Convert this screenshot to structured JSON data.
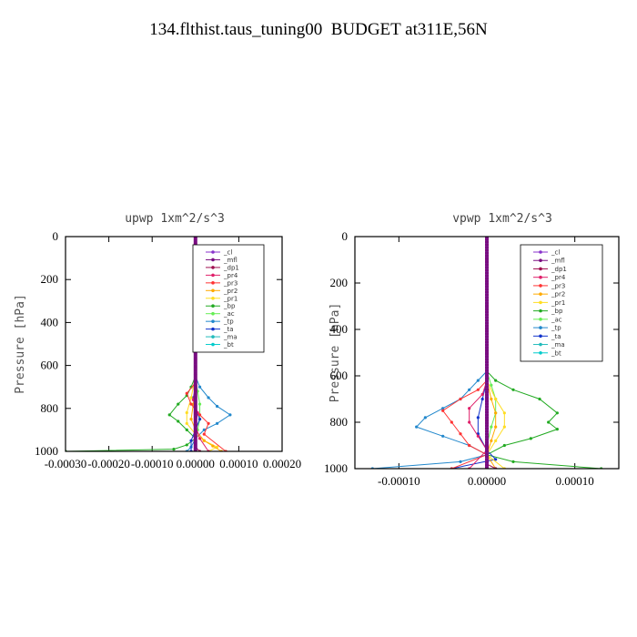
{
  "title": "134.flthist.taus_tuning00  BUDGET at311E,56N",
  "legend_entries": [
    "_cl",
    "_mfl",
    "_dp1",
    "_pr4",
    "_pr3",
    "_pr2",
    "_pr1",
    "_bp",
    "_ac",
    "_tp",
    "_ta",
    "_ma",
    "_bt"
  ],
  "colors": {
    "_cl": "#8833cc",
    "_mfl": "#7a0c80",
    "_dp1": "#a01050",
    "_pr4": "#e0206a",
    "_pr3": "#ff3333",
    "_pr2": "#ffaa00",
    "_pr1": "#ffdd22",
    "_bp": "#22aa22",
    "_ac": "#66ee55",
    "_tp": "#2288cc",
    "_ta": "#1133cc",
    "_ma": "#22bbbb",
    "_bt": "#00cccc"
  },
  "chart_data": [
    {
      "type": "line",
      "title": "upwp   1xm^2/s^3",
      "ylabel": "Pressure [hPa]",
      "xlabel": "",
      "xlim": [
        -0.0003,
        0.0002
      ],
      "ylim": [
        1000,
        0
      ],
      "xticks": [
        -0.0003,
        -0.0002,
        -0.0001,
        0.0,
        0.0001,
        0.0002
      ],
      "xtick_labels": [
        "-0.00030",
        "-0.00020",
        "-0.00010",
        "0.00000",
        "0.00010",
        "0.00020"
      ],
      "yticks": [
        0,
        200,
        400,
        600,
        800,
        1000
      ],
      "ytick_labels": [
        "0",
        "200",
        "400",
        "600",
        "800",
        "1000"
      ],
      "legend": "top-right",
      "series": [
        {
          "name": "_bp",
          "x": [
            0,
            0,
            -1e-05,
            -2e-05,
            -4e-05,
            -6e-05,
            -4e-05,
            -2e-05,
            0,
            -2e-05,
            -5e-05,
            -0.0003
          ],
          "y": [
            0,
            650,
            700,
            740,
            780,
            830,
            860,
            900,
            940,
            970,
            990,
            1000
          ]
        },
        {
          "name": "_ac",
          "x": [
            0,
            0,
            5e-06,
            1e-05,
            1e-05,
            5e-06,
            0,
            0
          ],
          "y": [
            0,
            650,
            720,
            780,
            850,
            900,
            950,
            1000
          ]
        },
        {
          "name": "_tp",
          "x": [
            0,
            0,
            1e-05,
            3e-05,
            5e-05,
            8e-05,
            5e-05,
            2e-05,
            0,
            -1e-05,
            -2e-05
          ],
          "y": [
            0,
            650,
            700,
            750,
            790,
            830,
            870,
            900,
            940,
            980,
            1000
          ]
        },
        {
          "name": "_ta",
          "x": [
            0,
            0,
            -5e-06,
            0,
            1e-05,
            0,
            -1e-05,
            -1e-05
          ],
          "y": [
            0,
            700,
            750,
            800,
            850,
            900,
            950,
            1000
          ]
        },
        {
          "name": "_pr1",
          "x": [
            0,
            0,
            -1e-05,
            -2e-05,
            -2e-05,
            0,
            2e-05,
            5e-05,
            3e-05
          ],
          "y": [
            0,
            650,
            750,
            820,
            870,
            920,
            950,
            980,
            1000
          ]
        },
        {
          "name": "_pr2",
          "x": [
            0,
            0,
            -5e-06,
            -1e-05,
            0,
            2e-05,
            4e-05,
            6e-05
          ],
          "y": [
            0,
            700,
            780,
            850,
            900,
            950,
            975,
            1000
          ]
        },
        {
          "name": "_pr3",
          "x": [
            0,
            0,
            -2e-05,
            -1e-05,
            1e-05,
            3e-05,
            2e-05,
            7e-05
          ],
          "y": [
            0,
            680,
            730,
            780,
            830,
            870,
            920,
            1000
          ]
        },
        {
          "name": "_pr4",
          "x": [
            0,
            0,
            -5e-06,
            5e-06,
            0,
            1e-05,
            3e-05
          ],
          "y": [
            0,
            700,
            760,
            820,
            880,
            940,
            1000
          ]
        },
        {
          "name": "_dp1",
          "x": [
            0,
            0,
            1e-05
          ],
          "y": [
            0,
            980,
            1000
          ]
        },
        {
          "name": "_mfl",
          "x": [
            0,
            0
          ],
          "y": [
            0,
            1000
          ]
        },
        {
          "name": "_cl",
          "x": [
            0,
            0
          ],
          "y": [
            0,
            1000
          ]
        },
        {
          "name": "_ma",
          "x": [
            0,
            0
          ],
          "y": [
            0,
            1000
          ]
        },
        {
          "name": "_bt",
          "x": [
            0,
            0
          ],
          "y": [
            0,
            1000
          ]
        }
      ]
    },
    {
      "type": "line",
      "title": "vpwp   1xm^2/s^3",
      "ylabel": "Pressure [hPa]",
      "xlabel": "",
      "xlim": [
        -0.00015,
        0.00015
      ],
      "ylim": [
        1000,
        0
      ],
      "xticks": [
        -0.0001,
        0.0,
        0.0001
      ],
      "xtick_labels": [
        "-0.00010",
        "0.00000",
        "0.00010"
      ],
      "yticks": [
        0,
        200,
        400,
        600,
        800,
        1000
      ],
      "ytick_labels": [
        "0",
        "200",
        "400",
        "600",
        "800",
        "1000"
      ],
      "legend": "top-right",
      "series": [
        {
          "name": "_bp",
          "x": [
            0,
            0,
            1e-05,
            3e-05,
            6e-05,
            8e-05,
            7e-05,
            8e-05,
            5e-05,
            2e-05,
            0,
            3e-05,
            0.00013
          ],
          "y": [
            0,
            580,
            620,
            660,
            700,
            760,
            800,
            830,
            870,
            900,
            940,
            970,
            1000
          ]
        },
        {
          "name": "_ac",
          "x": [
            0,
            0,
            5e-06,
            1e-05,
            1e-05,
            5e-06,
            0,
            0
          ],
          "y": [
            0,
            580,
            640,
            700,
            760,
            820,
            900,
            1000
          ]
        },
        {
          "name": "_tp",
          "x": [
            0,
            0,
            -1e-05,
            -2e-05,
            -3e-05,
            -5e-05,
            -7e-05,
            -8e-05,
            -5e-05,
            -2e-05,
            0,
            -3e-05,
            -0.00013
          ],
          "y": [
            0,
            580,
            620,
            660,
            700,
            740,
            780,
            820,
            860,
            900,
            940,
            970,
            1000
          ]
        },
        {
          "name": "_ta",
          "x": [
            0,
            0,
            -5e-06,
            -1e-05,
            -1e-05,
            0,
            1e-05,
            -4e-05
          ],
          "y": [
            0,
            620,
            700,
            780,
            850,
            920,
            960,
            1000
          ]
        },
        {
          "name": "_pr1",
          "x": [
            0,
            0,
            1e-05,
            2e-05,
            2e-05,
            1e-05,
            0,
            2e-05
          ],
          "y": [
            0,
            620,
            700,
            760,
            820,
            880,
            940,
            1000
          ]
        },
        {
          "name": "_pr2",
          "x": [
            0,
            0,
            5e-06,
            1e-05,
            1e-05,
            5e-06,
            0,
            1e-05
          ],
          "y": [
            0,
            620,
            700,
            760,
            820,
            880,
            940,
            1000
          ]
        },
        {
          "name": "_pr3",
          "x": [
            0,
            0,
            -1e-05,
            -3e-05,
            -5e-05,
            -4e-05,
            -3e-05,
            -2e-05,
            0,
            -4e-05
          ],
          "y": [
            0,
            620,
            660,
            700,
            750,
            800,
            850,
            900,
            940,
            1000
          ]
        },
        {
          "name": "_pr4",
          "x": [
            0,
            0,
            -5e-06,
            -2e-05,
            -2e-05,
            -1e-05,
            0,
            -2e-05
          ],
          "y": [
            0,
            620,
            680,
            740,
            800,
            860,
            920,
            1000
          ]
        },
        {
          "name": "_dp1",
          "x": [
            0,
            0,
            1e-05
          ],
          "y": [
            0,
            980,
            1000
          ]
        },
        {
          "name": "_mfl",
          "x": [
            0,
            0
          ],
          "y": [
            0,
            1000
          ]
        },
        {
          "name": "_cl",
          "x": [
            0,
            0
          ],
          "y": [
            0,
            1000
          ]
        },
        {
          "name": "_ma",
          "x": [
            0,
            0
          ],
          "y": [
            0,
            1000
          ]
        },
        {
          "name": "_bt",
          "x": [
            0,
            0
          ],
          "y": [
            0,
            1000
          ]
        }
      ]
    }
  ]
}
